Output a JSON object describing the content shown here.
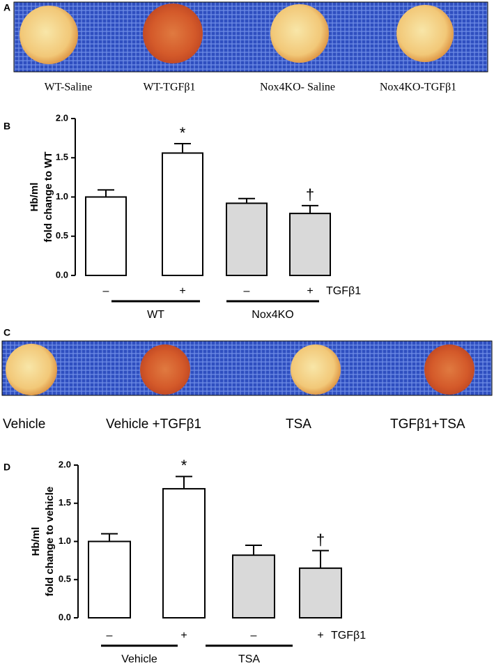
{
  "panels": [
    {
      "letter": "A",
      "labels": [
        "WT-Saline",
        "WT-TGFβ1",
        "Nox4KO- Saline",
        "Nox4KO-TGFβ1"
      ]
    },
    {
      "letter": "C",
      "labels": [
        "Vehicle",
        "Vehicle +TGFβ1",
        "TSA",
        "TGFβ1+TSA"
      ]
    }
  ],
  "chart_data": [
    {
      "type": "bar",
      "letter": "B",
      "y_label": [
        "Hb/ml",
        "fold change to WT"
      ],
      "categories": [
        "–",
        "+",
        "–",
        "+"
      ],
      "values": [
        1.0,
        1.56,
        0.92,
        0.79
      ],
      "errors": [
        0.09,
        0.12,
        0.06,
        0.1
      ],
      "value_annotations": [
        null,
        "*",
        null,
        "†"
      ],
      "colors": [
        "#ffffff",
        "#ffffff",
        "#d9d9d9",
        "#d9d9d9"
      ],
      "groups": [
        "WT",
        "Nox4KO"
      ],
      "row_label": "TGFβ1",
      "ylim": [
        0,
        2
      ],
      "yticks": [
        {
          "value": 0,
          "label": "0.0"
        },
        0.5,
        {
          "value": 1,
          "label": "1.0"
        },
        1.5,
        {
          "value": 2,
          "label": "2.0"
        }
      ]
    },
    {
      "type": "bar",
      "letter": "D",
      "y_label": [
        "Hb/ml",
        "fold change to vehicle"
      ],
      "categories": [
        "–",
        "+",
        "–",
        "+"
      ],
      "values": [
        1.0,
        1.69,
        0.82,
        0.65
      ],
      "errors": [
        0.1,
        0.16,
        0.13,
        0.23
      ],
      "value_annotations": [
        null,
        "*",
        null,
        "†"
      ],
      "colors": [
        "#ffffff",
        "#ffffff",
        "#d9d9d9",
        "#d9d9d9"
      ],
      "groups": [
        "Vehicle",
        "TSA"
      ],
      "row_label": "TGFβ1",
      "ylim": [
        0,
        2
      ],
      "yticks": [
        {
          "value": 0,
          "label": "0.0"
        },
        0.5,
        {
          "value": 1,
          "label": "1.0"
        },
        1.5,
        {
          "value": 2,
          "label": "2.0"
        }
      ]
    }
  ]
}
